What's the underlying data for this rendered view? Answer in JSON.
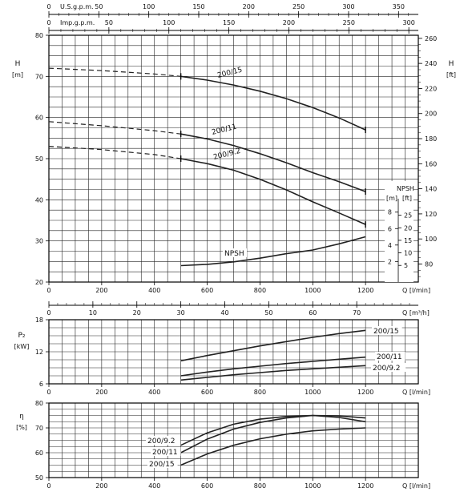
{
  "chart_data": [
    {
      "type": "line",
      "top_axes": {
        "usgpm": {
          "label": "U.S.g.p.m.",
          "ticks": [
            0,
            50,
            100,
            150,
            200,
            250,
            300,
            350
          ]
        },
        "impgpm": {
          "label": "Imp.g.p.m.",
          "ticks": [
            0,
            50,
            100,
            150,
            200,
            250,
            300
          ]
        }
      },
      "x": {
        "label": "Q [l/min]",
        "min": 0,
        "max": 1400,
        "ticks": [
          0,
          200,
          400,
          600,
          800,
          1000,
          1200
        ]
      },
      "x_secondary": {
        "label": "Q [m³/h]",
        "ticks": [
          0,
          10,
          20,
          30,
          40,
          50,
          60,
          70
        ]
      },
      "y_left": {
        "label": "H",
        "unit": "[m]",
        "min": 20,
        "max": 80,
        "ticks": [
          20,
          30,
          40,
          50,
          60,
          70,
          80
        ]
      },
      "y_right": {
        "label": "H",
        "unit": "[ft]",
        "ticks": [
          80,
          100,
          120,
          140,
          160,
          180,
          200,
          220,
          240,
          260
        ]
      },
      "npsh_axis": {
        "m_label": "[m]",
        "ft_label": "[ft]",
        "title": "NPSH",
        "m_ticks": [
          2,
          4,
          6,
          8
        ],
        "ft_ticks": [
          5,
          10,
          15,
          20,
          25
        ]
      },
      "series": [
        {
          "name": "200/15",
          "x": [
            0,
            200,
            400,
            500,
            600,
            700,
            800,
            900,
            1000,
            1100,
            1200
          ],
          "y": [
            72,
            71.4,
            70.6,
            70,
            69.1,
            67.9,
            66.4,
            64.6,
            62.4,
            59.9,
            57
          ],
          "dashed_until": 500
        },
        {
          "name": "200/11",
          "x": [
            0,
            200,
            400,
            500,
            600,
            700,
            800,
            900,
            1000,
            1100,
            1200
          ],
          "y": [
            59,
            58,
            56.8,
            56,
            54.8,
            53.2,
            51.2,
            49,
            46.6,
            44.4,
            42
          ],
          "dashed_until": 500
        },
        {
          "name": "200/9.2",
          "x": [
            0,
            200,
            400,
            500,
            600,
            700,
            800,
            900,
            1000,
            1100,
            1200
          ],
          "y": [
            53,
            52.2,
            51,
            50,
            48.8,
            47.2,
            45,
            42.4,
            39.5,
            36.8,
            34
          ],
          "dashed_until": 500
        },
        {
          "name": "NPSH",
          "x": [
            500,
            600,
            700,
            800,
            900,
            1000,
            1100,
            1200
          ],
          "y": [
            24,
            24.3,
            24.9,
            25.8,
            26.9,
            27.8,
            29.3,
            31
          ]
        }
      ],
      "npsh_label": "NPSH"
    },
    {
      "type": "line",
      "y": {
        "label": "P₂",
        "unit": "[kW]",
        "min": 6,
        "max": 18,
        "ticks": [
          6,
          12,
          18
        ]
      },
      "x": {
        "label": "Q [l/min]",
        "min": 0,
        "max": 1400,
        "ticks": [
          0,
          200,
          400,
          600,
          800,
          1000,
          1200
        ]
      },
      "series": [
        {
          "name": "200/15",
          "x": [
            500,
            600,
            700,
            800,
            900,
            1000,
            1100,
            1200
          ],
          "y": [
            10.3,
            11.3,
            12.2,
            13.1,
            13.9,
            14.7,
            15.4,
            16
          ]
        },
        {
          "name": "200/11",
          "x": [
            500,
            600,
            700,
            800,
            900,
            1000,
            1100,
            1200
          ],
          "y": [
            7.5,
            8.2,
            8.8,
            9.3,
            9.8,
            10.2,
            10.6,
            11
          ]
        },
        {
          "name": "200/9.2",
          "x": [
            500,
            600,
            700,
            800,
            900,
            1000,
            1100,
            1200
          ],
          "y": [
            6.7,
            7.2,
            7.7,
            8.1,
            8.5,
            8.8,
            9.1,
            9.4
          ]
        }
      ]
    },
    {
      "type": "line",
      "y": {
        "label": "η",
        "unit": "[%]",
        "min": 50,
        "max": 80,
        "ticks": [
          50,
          60,
          70,
          80
        ]
      },
      "x": {
        "label": "Q [l/min]",
        "min": 0,
        "max": 1400,
        "ticks": [
          0,
          200,
          400,
          600,
          800,
          1000,
          1200
        ]
      },
      "series": [
        {
          "name": "200/9.2",
          "x": [
            500,
            600,
            700,
            800,
            900,
            1000,
            1100,
            1200
          ],
          "y": [
            63,
            68,
            71.5,
            73.5,
            74.6,
            75,
            74.2,
            72.5
          ]
        },
        {
          "name": "200/11",
          "x": [
            500,
            600,
            700,
            800,
            900,
            1000,
            1100,
            1200
          ],
          "y": [
            60,
            65.5,
            69.5,
            72.2,
            74,
            75,
            74.8,
            74
          ]
        },
        {
          "name": "200/15",
          "x": [
            500,
            600,
            700,
            800,
            900,
            1000,
            1100,
            1200
          ],
          "y": [
            55,
            59.5,
            63,
            65.6,
            67.5,
            68.8,
            69.5,
            70
          ]
        }
      ]
    }
  ]
}
